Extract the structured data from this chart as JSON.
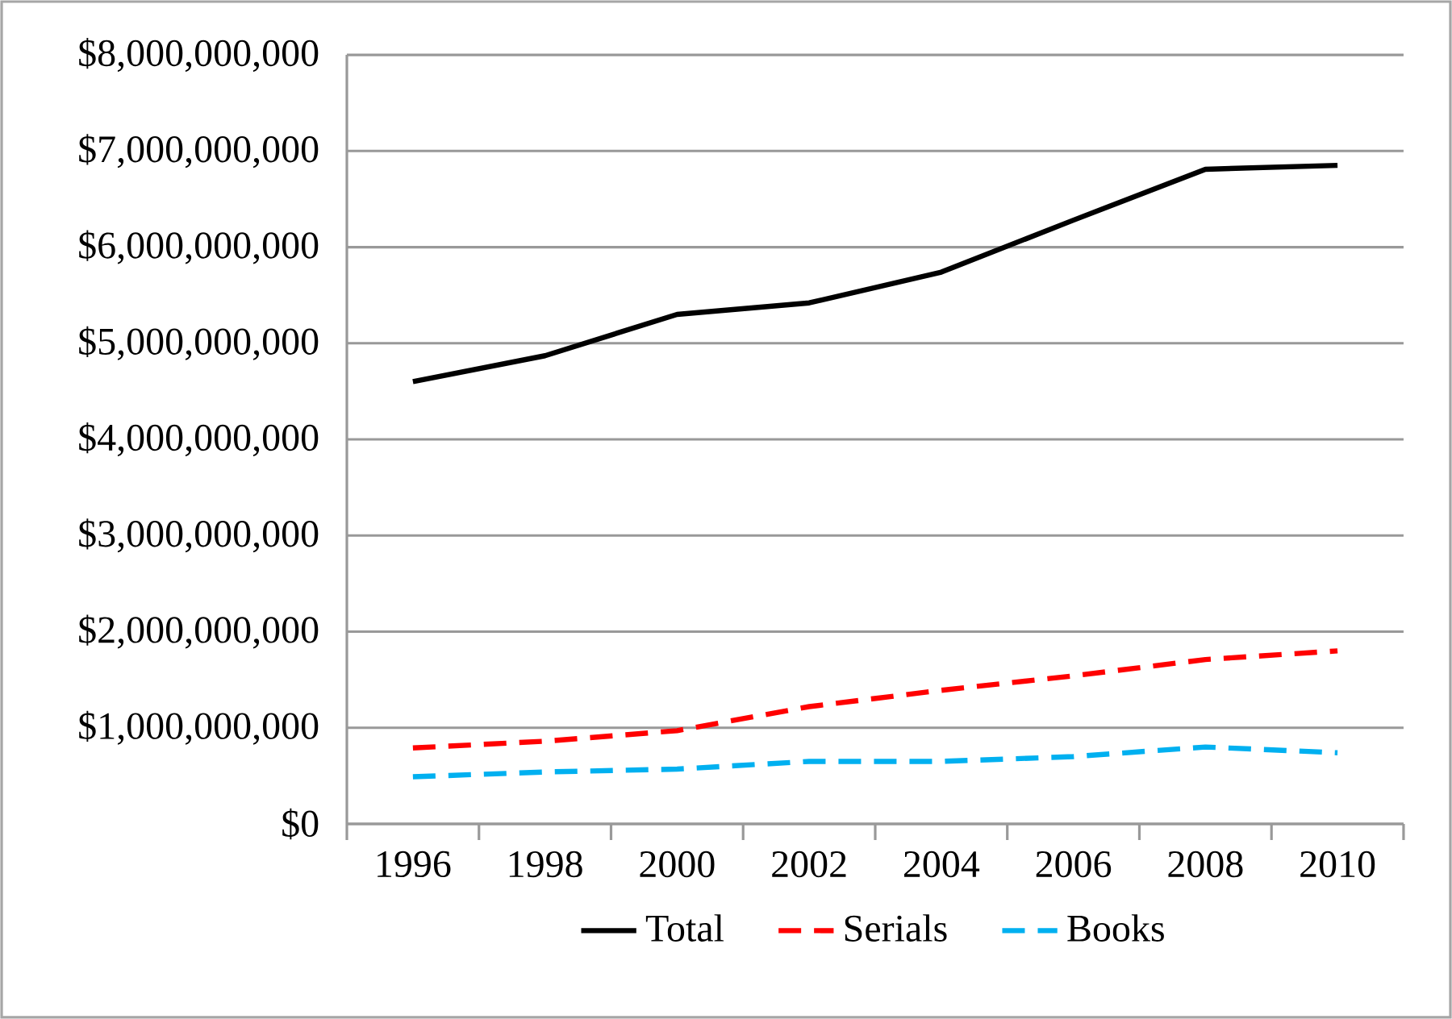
{
  "chart_data": {
    "type": "line",
    "categories": [
      "1996",
      "1998",
      "2000",
      "2002",
      "2004",
      "2006",
      "2008",
      "2010"
    ],
    "series": [
      {
        "name": "Total",
        "color": "#000000",
        "line_style": "solid",
        "values": [
          4600000000,
          4870000000,
          5300000000,
          5420000000,
          5740000000,
          6280000000,
          6810000000,
          6850000000
        ]
      },
      {
        "name": "Serials",
        "color": "#ff0000",
        "line_style": "dashed",
        "values": [
          790000000,
          860000000,
          970000000,
          1220000000,
          1390000000,
          1540000000,
          1710000000,
          1800000000
        ]
      },
      {
        "name": "Books",
        "color": "#00b0f0",
        "line_style": "dashed",
        "values": [
          490000000,
          540000000,
          570000000,
          650000000,
          650000000,
          700000000,
          800000000,
          740000000
        ]
      }
    ],
    "ylim": [
      0,
      8000000000
    ],
    "yticks": [
      {
        "value": 0,
        "label": "$0"
      },
      {
        "value": 1000000000,
        "label": "$1,000,000,000"
      },
      {
        "value": 2000000000,
        "label": "$2,000,000,000"
      },
      {
        "value": 3000000000,
        "label": "$3,000,000,000"
      },
      {
        "value": 4000000000,
        "label": "$4,000,000,000"
      },
      {
        "value": 5000000000,
        "label": "$5,000,000,000"
      },
      {
        "value": 6000000000,
        "label": "$6,000,000,000"
      },
      {
        "value": 7000000000,
        "label": "$7,000,000,000"
      },
      {
        "value": 8000000000,
        "label": "$8,000,000,000"
      }
    ],
    "grid": "y",
    "legend": "bottom",
    "marker": "none"
  }
}
